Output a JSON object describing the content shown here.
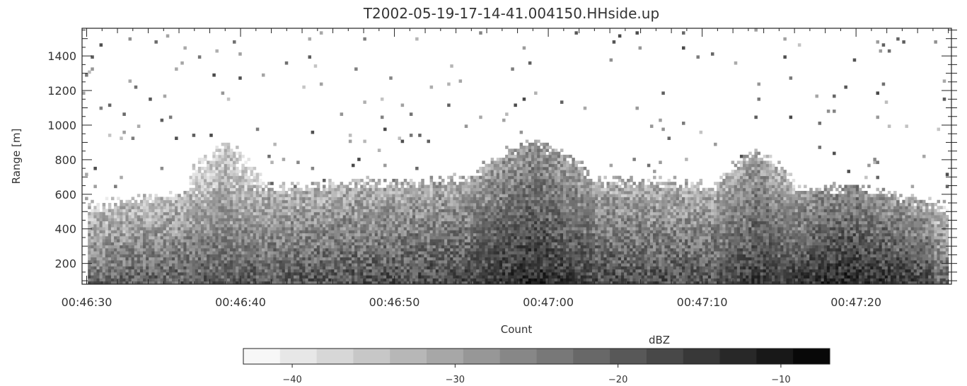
{
  "chart_data": {
    "type": "heatmap",
    "title": "T2002-05-19-17-14-41.004150.HHside.up",
    "xlabel": "Count",
    "ylabel": "Range [m]",
    "x_tick_labels": [
      "00:46:30",
      "00:46:40",
      "00:46:50",
      "00:47:00",
      "00:47:10",
      "00:47:20"
    ],
    "x_tick_values_s": [
      0,
      10,
      20,
      30,
      40,
      50
    ],
    "x_range_s": [
      -0.3,
      56.2
    ],
    "y_ticks": [
      200,
      400,
      600,
      800,
      1000,
      1200,
      1400
    ],
    "y_range": [
      80,
      1560
    ],
    "colorbar": {
      "label": "dBZ",
      "range": [
        -43,
        -7
      ],
      "ticks": [
        -40,
        -30,
        -20,
        -10
      ],
      "colormap": "white-to-black greyscale",
      "n_levels": 16
    },
    "echo_layers": [
      {
        "t_start_s": 0,
        "t_end_s": 56,
        "top_m": 700,
        "peak_dbz": -15
      },
      {
        "t_start_s": 6.5,
        "t_end_s": 11.5,
        "top_m": 880,
        "peak_dbz": -20
      },
      {
        "t_start_s": 25,
        "t_end_s": 33,
        "top_m": 900,
        "peak_dbz": -12
      },
      {
        "t_start_s": 41,
        "t_end_s": 46,
        "top_m": 850,
        "peak_dbz": -14
      },
      {
        "t_start_s": 44,
        "t_end_s": 55,
        "top_m": 650,
        "peak_dbz": -11
      }
    ],
    "grid": false,
    "legend": "none"
  }
}
